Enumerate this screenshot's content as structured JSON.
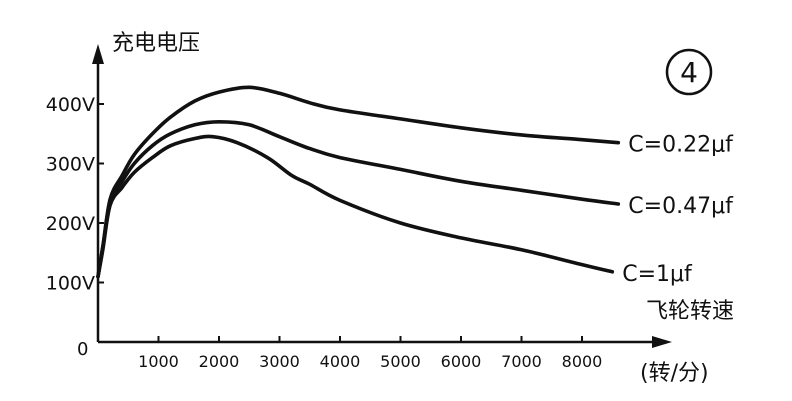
{
  "chart_data": {
    "type": "line",
    "figure_label": "④",
    "ylabel": "充电电压",
    "xlabel": "飞轮转速",
    "xunit": "(转/分)",
    "xlim": [
      0,
      8700
    ],
    "ylim": [
      0,
      480
    ],
    "xticks": [
      1000,
      2000,
      3000,
      4000,
      5000,
      6000,
      7000,
      8000
    ],
    "yticks": [
      {
        "value": 100,
        "label": "100V"
      },
      {
        "value": 200,
        "label": "200V"
      },
      {
        "value": 300,
        "label": "300V"
      },
      {
        "value": 400,
        "label": "400V"
      }
    ],
    "origin_label": "0",
    "grid": false,
    "series": [
      {
        "name": "C=0.22μf",
        "x": [
          0,
          80,
          200,
          400,
          600,
          900,
          1200,
          1600,
          2000,
          2500,
          3000,
          3500,
          4000,
          5000,
          6000,
          7000,
          8000,
          8600
        ],
        "y": [
          110,
          160,
          240,
          280,
          315,
          350,
          378,
          405,
          420,
          428,
          418,
          402,
          390,
          375,
          360,
          348,
          340,
          335
        ]
      },
      {
        "name": "C=0.47μf",
        "x": [
          0,
          80,
          200,
          400,
          600,
          900,
          1200,
          1600,
          2000,
          2500,
          3000,
          3500,
          4000,
          5000,
          6000,
          7000,
          8000,
          8600
        ],
        "y": [
          110,
          160,
          235,
          270,
          300,
          330,
          350,
          365,
          370,
          365,
          345,
          325,
          310,
          290,
          270,
          255,
          240,
          232
        ]
      },
      {
        "name": "C=1μf",
        "x": [
          0,
          80,
          200,
          400,
          600,
          900,
          1200,
          1600,
          1900,
          2300,
          2800,
          3200,
          3500,
          4000,
          5000,
          6000,
          7000,
          8000,
          8500
        ],
        "y": [
          110,
          155,
          230,
          260,
          285,
          310,
          330,
          342,
          345,
          335,
          310,
          280,
          265,
          238,
          200,
          175,
          155,
          130,
          118
        ]
      }
    ]
  }
}
